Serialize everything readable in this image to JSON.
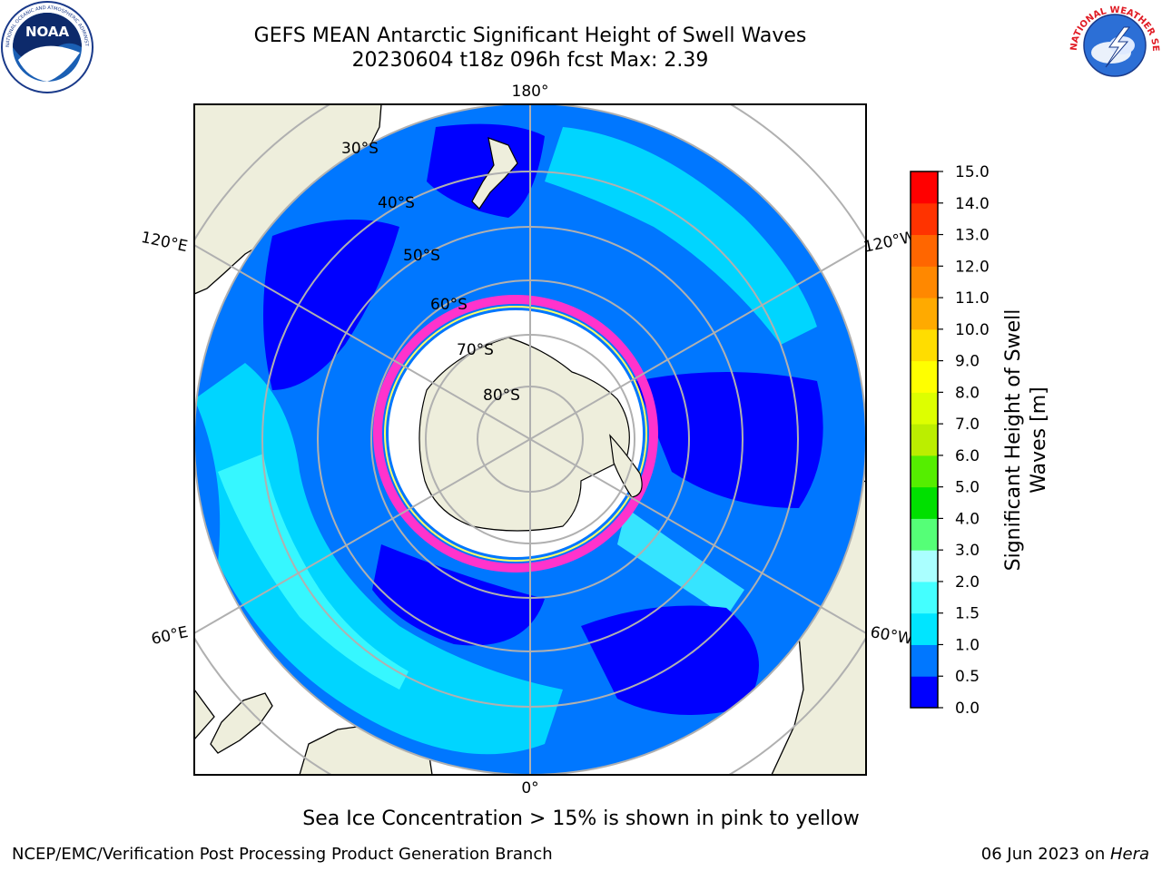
{
  "header": {
    "title_line1": "GEFS MEAN Antarctic Significant Height of Swell Waves",
    "title_line2": "20230604 t18z 096h fcst   Max: 2.39"
  },
  "logos": {
    "left": "NOAA",
    "left_ring_text": "NATIONAL OCEANIC AND ATMOSPHERIC ADMINISTRATION · U.S. DEPARTMENT OF COMMERCE",
    "right_ring_text": "NATIONAL WEATHER SERVICE"
  },
  "map": {
    "projection": "south-polar-stereographic",
    "longitude_labels": [
      "180°",
      "120°E",
      "120°W",
      "60°E",
      "60°W",
      "0°"
    ],
    "latitude_labels": [
      "30°S",
      "40°S",
      "50°S",
      "60°S",
      "70°S",
      "80°S"
    ],
    "land_color": "#eeeedc",
    "ice_edge_colors": [
      "#ff33cc",
      "#ffff00"
    ]
  },
  "colorbar": {
    "label_line1": "Significant Height of Swell",
    "label_line2": "Waves [m]",
    "ticks": [
      "0.0",
      "0.5",
      "1.0",
      "1.5",
      "2.0",
      "3.0",
      "4.0",
      "5.0",
      "6.0",
      "7.0",
      "8.0",
      "9.0",
      "10.0",
      "11.0",
      "12.0",
      "13.0",
      "14.0",
      "15.0"
    ],
    "colors": [
      "#0000ff",
      "#0077ff",
      "#00e5ff",
      "#44ffff",
      "#aaffff",
      "#55ff77",
      "#00e000",
      "#55ee00",
      "#bbee00",
      "#ddff00",
      "#ffff00",
      "#ffdd00",
      "#ffaa00",
      "#ff8800",
      "#ff6600",
      "#ff3300",
      "#ff0000"
    ]
  },
  "note": "Sea Ice Concentration > 15% is shown in pink to yellow",
  "footer": {
    "left": "NCEP/EMC/Verification Post Processing Product Generation Branch",
    "right_date": "06 Jun 2023 on ",
    "right_host": "Hera"
  }
}
